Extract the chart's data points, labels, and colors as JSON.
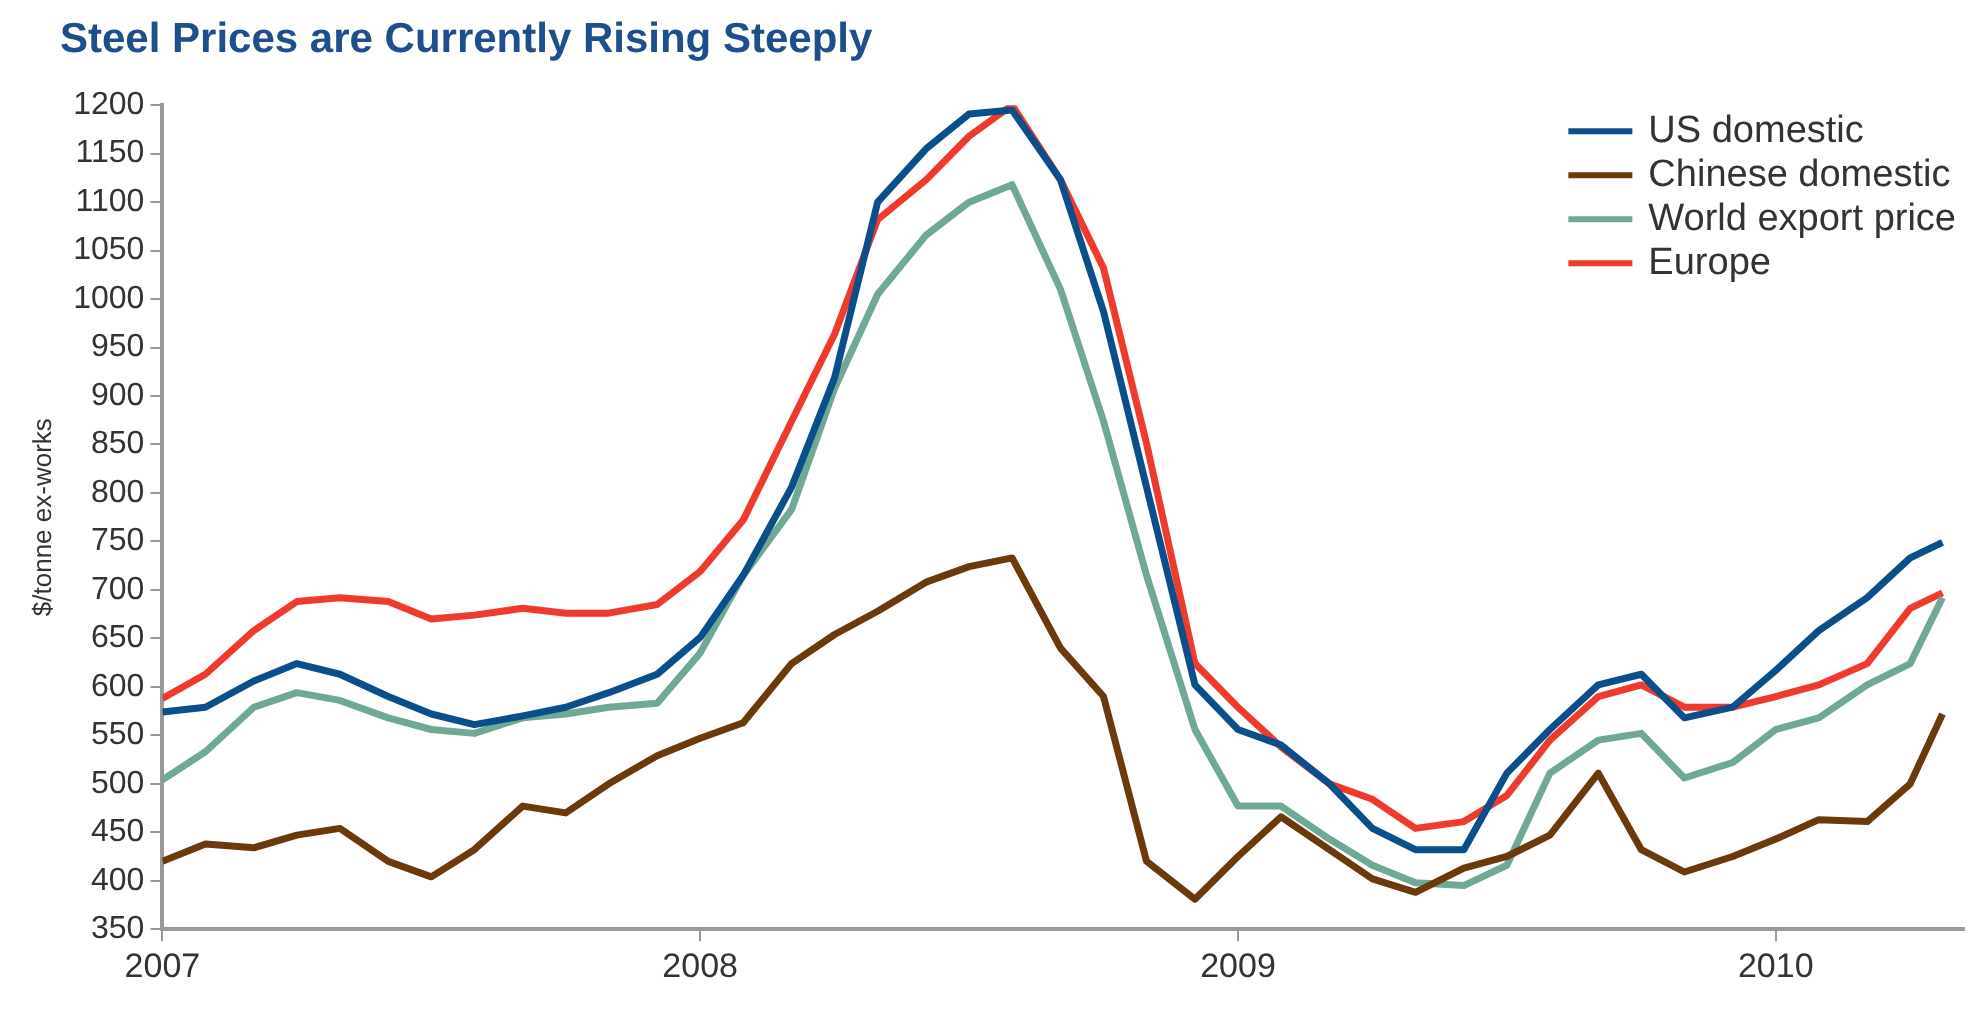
{
  "chart_data": {
    "type": "line",
    "title": "Steel Prices are Currently Rising Steeply",
    "ylabel": "$/tonne ex-works",
    "x": [
      2007,
      2007.08,
      2007.17,
      2007.25,
      2007.33,
      2007.42,
      2007.5,
      2007.58,
      2007.67,
      2007.75,
      2007.83,
      2007.92,
      2008,
      2008.08,
      2008.17,
      2008.25,
      2008.33,
      2008.42,
      2008.5,
      2008.58,
      2008.67,
      2008.75,
      2008.83,
      2008.92,
      2009,
      2009.08,
      2009.17,
      2009.25,
      2009.33,
      2009.42,
      2009.5,
      2009.58,
      2009.67,
      2009.75,
      2009.83,
      2009.92,
      2010,
      2010.08,
      2010.17,
      2010.25,
      2010.31
    ],
    "series": [
      {
        "name": "US domestic",
        "color": "#0b4f8a",
        "values": [
          574,
          579,
          606,
          624,
          613,
          590,
          572,
          561,
          570,
          579,
          594,
          613,
          651,
          715,
          806,
          919,
          1100,
          1155,
          1191,
          1195,
          1123,
          987,
          806,
          602,
          556,
          540,
          500,
          454,
          432,
          432,
          511,
          556,
          602,
          613,
          568,
          579,
          617,
          658,
          692,
          733,
          749
        ]
      },
      {
        "name": "Chinese domestic",
        "color": "#6b3a0c",
        "values": [
          420,
          438,
          434,
          447,
          454,
          420,
          404,
          432,
          477,
          470,
          500,
          529,
          547,
          563,
          624,
          654,
          678,
          708,
          724,
          733,
          640,
          590,
          420,
          381,
          425,
          466,
          432,
          402,
          388,
          413,
          425,
          447,
          511,
          432,
          409,
          425,
          443,
          463,
          461,
          500,
          572
        ]
      },
      {
        "name": "World export price",
        "color": "#6fa895",
        "values": [
          504,
          533,
          579,
          594,
          586,
          568,
          556,
          552,
          568,
          572,
          579,
          583,
          635,
          715,
          783,
          908,
          1005,
          1066,
          1100,
          1118,
          1010,
          874,
          715,
          556,
          477,
          477,
          443,
          416,
          398,
          395,
          416,
          511,
          545,
          552,
          506,
          522,
          556,
          568,
          602,
          624,
          692
        ]
      },
      {
        "name": "Europe",
        "color": "#ee3b2e",
        "values": [
          588,
          613,
          658,
          688,
          692,
          688,
          670,
          674,
          681,
          676,
          676,
          685,
          719,
          772,
          874,
          964,
          1082,
          1123,
          1168,
          1200,
          1123,
          1032,
          851,
          624,
          579,
          538,
          500,
          484,
          454,
          461,
          488,
          545,
          590,
          602,
          579,
          579,
          590,
          602,
          624,
          681,
          697
        ]
      }
    ],
    "xlim": [
      2007,
      2010.35
    ],
    "xticks": [
      2007,
      2008,
      2009,
      2010
    ],
    "ylim": [
      350,
      1200
    ],
    "yticks": [
      350,
      400,
      450,
      500,
      550,
      600,
      650,
      700,
      750,
      800,
      850,
      900,
      950,
      1000,
      1050,
      1100,
      1150,
      1200
    ],
    "legend": "top right",
    "grid": false
  }
}
